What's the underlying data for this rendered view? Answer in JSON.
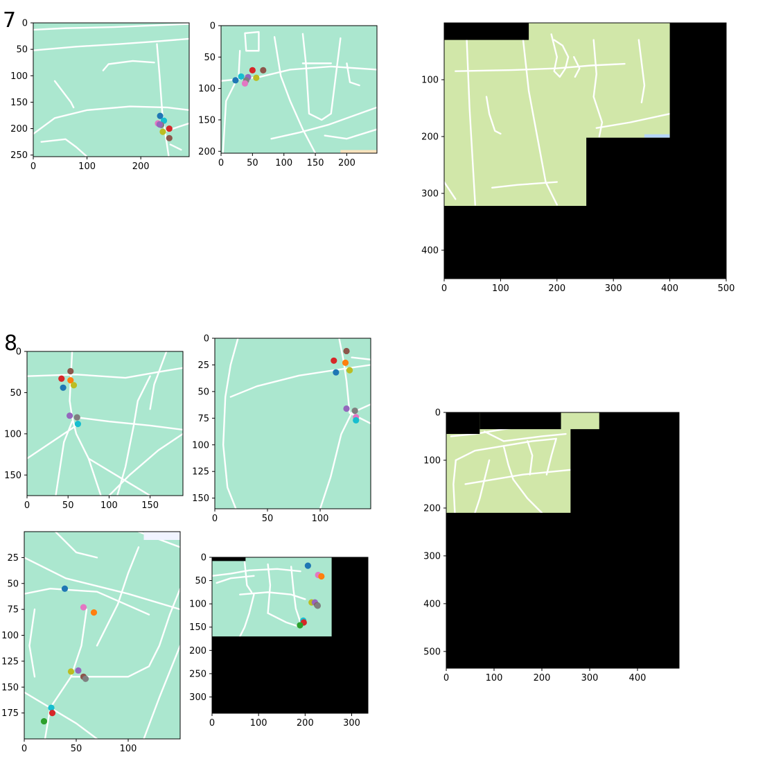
{
  "figure": {
    "panel_labels": [
      "7",
      "8"
    ]
  },
  "colors": {
    "teal_bg": "#abe7cf",
    "green_bg": "#d1e7a9",
    "road": "#ffffff",
    "mask": "#000000",
    "palette": [
      "#1f77b4",
      "#ff7f0e",
      "#2ca02c",
      "#d62728",
      "#9467bd",
      "#8c564b",
      "#e377c2",
      "#7f7f7f",
      "#bcbd22",
      "#17becf"
    ]
  },
  "chart_data": [
    {
      "type": "scatter",
      "panel": "7",
      "background": "map-tile",
      "xticks": [
        0,
        100,
        200
      ],
      "yticks": [
        0,
        50,
        100,
        150,
        200,
        250
      ],
      "xlim": [
        0,
        290
      ],
      "ylim": [
        253,
        0
      ],
      "points": [
        {
          "color_index": 0,
          "x": 236,
          "y": 176
        },
        {
          "color_index": 9,
          "x": 243,
          "y": 185
        },
        {
          "color_index": 6,
          "x": 232,
          "y": 190
        },
        {
          "color_index": 7,
          "x": 238,
          "y": 193
        },
        {
          "color_index": 4,
          "x": 235,
          "y": 192
        },
        {
          "color_index": 3,
          "x": 253,
          "y": 200
        },
        {
          "color_index": 8,
          "x": 241,
          "y": 206
        },
        {
          "color_index": 5,
          "x": 253,
          "y": 218
        }
      ]
    },
    {
      "type": "scatter",
      "panel": "7",
      "background": "map-tile",
      "xticks": [
        0,
        50,
        100,
        150,
        200
      ],
      "yticks": [
        0,
        50,
        100,
        150,
        200
      ],
      "xlim": [
        0,
        248
      ],
      "ylim": [
        203,
        0
      ],
      "points": [
        {
          "color_index": 0,
          "x": 23,
          "y": 87
        },
        {
          "color_index": 9,
          "x": 32,
          "y": 81
        },
        {
          "color_index": 3,
          "x": 50,
          "y": 71
        },
        {
          "color_index": 4,
          "x": 43,
          "y": 82
        },
        {
          "color_index": 7,
          "x": 40,
          "y": 87
        },
        {
          "color_index": 6,
          "x": 38,
          "y": 92
        },
        {
          "color_index": 8,
          "x": 56,
          "y": 83
        },
        {
          "color_index": 5,
          "x": 67,
          "y": 71
        }
      ]
    },
    {
      "type": "scatter",
      "panel": "7",
      "background": "stitched-map-with-mask",
      "xticks": [
        0,
        100,
        200,
        300,
        400,
        500
      ],
      "yticks": [
        100,
        200,
        300,
        400
      ],
      "xlim": [
        0,
        500
      ],
      "ylim": [
        450,
        0
      ],
      "points": []
    },
    {
      "type": "scatter",
      "panel": "8",
      "background": "map-tile",
      "xticks": [
        0,
        50,
        100,
        150
      ],
      "yticks": [
        0,
        50,
        100,
        150
      ],
      "xlim": [
        0,
        190
      ],
      "ylim": [
        175,
        0
      ],
      "points": [
        {
          "color_index": 5,
          "x": 53,
          "y": 24
        },
        {
          "color_index": 3,
          "x": 42,
          "y": 33
        },
        {
          "color_index": 1,
          "x": 53,
          "y": 35
        },
        {
          "color_index": 8,
          "x": 57,
          "y": 41
        },
        {
          "color_index": 0,
          "x": 44,
          "y": 44
        },
        {
          "color_index": 4,
          "x": 52,
          "y": 78
        },
        {
          "color_index": 7,
          "x": 61,
          "y": 80
        },
        {
          "color_index": 9,
          "x": 62,
          "y": 88
        }
      ]
    },
    {
      "type": "scatter",
      "panel": "8",
      "background": "map-tile",
      "xticks": [
        0,
        50,
        100
      ],
      "yticks": [
        0,
        25,
        50,
        75,
        100,
        125,
        150
      ],
      "xlim": [
        0,
        148
      ],
      "ylim": [
        160,
        0
      ],
      "points": [
        {
          "color_index": 5,
          "x": 125,
          "y": 12
        },
        {
          "color_index": 3,
          "x": 113,
          "y": 21
        },
        {
          "color_index": 1,
          "x": 124,
          "y": 23
        },
        {
          "color_index": 8,
          "x": 128,
          "y": 30
        },
        {
          "color_index": 0,
          "x": 115,
          "y": 32
        },
        {
          "color_index": 4,
          "x": 125,
          "y": 66
        },
        {
          "color_index": 7,
          "x": 133,
          "y": 68
        },
        {
          "color_index": 6,
          "x": 134,
          "y": 74
        },
        {
          "color_index": 9,
          "x": 134,
          "y": 77
        }
      ]
    },
    {
      "type": "scatter",
      "panel": "8",
      "background": "map-tile",
      "xticks": [
        0,
        50,
        100
      ],
      "yticks": [
        25,
        50,
        75,
        100,
        125,
        150,
        175
      ],
      "xlim": [
        0,
        150
      ],
      "ylim": [
        200,
        0
      ],
      "points": [
        {
          "color_index": 0,
          "x": 39,
          "y": 55
        },
        {
          "color_index": 6,
          "x": 57,
          "y": 73
        },
        {
          "color_index": 1,
          "x": 67,
          "y": 78
        },
        {
          "color_index": 8,
          "x": 45,
          "y": 135
        },
        {
          "color_index": 4,
          "x": 52,
          "y": 134
        },
        {
          "color_index": 5,
          "x": 57,
          "y": 140
        },
        {
          "color_index": 7,
          "x": 59,
          "y": 142
        },
        {
          "color_index": 9,
          "x": 26,
          "y": 170
        },
        {
          "color_index": 3,
          "x": 27,
          "y": 175
        },
        {
          "color_index": 2,
          "x": 19,
          "y": 183
        }
      ]
    },
    {
      "type": "scatter",
      "panel": "8",
      "background": "stitched-map-with-mask",
      "xticks": [
        0,
        100,
        200,
        300
      ],
      "yticks": [
        0,
        50,
        100,
        150,
        200,
        250,
        300
      ],
      "xlim": [
        0,
        335
      ],
      "ylim": [
        335,
        0
      ],
      "points": [
        {
          "color_index": 0,
          "x": 206,
          "y": 18
        },
        {
          "color_index": 6,
          "x": 228,
          "y": 38
        },
        {
          "color_index": 1,
          "x": 235,
          "y": 41
        },
        {
          "color_index": 8,
          "x": 214,
          "y": 97
        },
        {
          "color_index": 4,
          "x": 221,
          "y": 97
        },
        {
          "color_index": 5,
          "x": 226,
          "y": 103
        },
        {
          "color_index": 7,
          "x": 227,
          "y": 104
        },
        {
          "color_index": 9,
          "x": 196,
          "y": 136
        },
        {
          "color_index": 3,
          "x": 197,
          "y": 140
        },
        {
          "color_index": 2,
          "x": 189,
          "y": 146
        }
      ]
    },
    {
      "type": "scatter",
      "panel": "8",
      "background": "stitched-map-with-mask",
      "xticks": [
        0,
        100,
        200,
        300,
        400
      ],
      "yticks": [
        0,
        100,
        200,
        300,
        400,
        500
      ],
      "xlim": [
        0,
        487
      ],
      "ylim": [
        535,
        0
      ],
      "points": []
    }
  ]
}
